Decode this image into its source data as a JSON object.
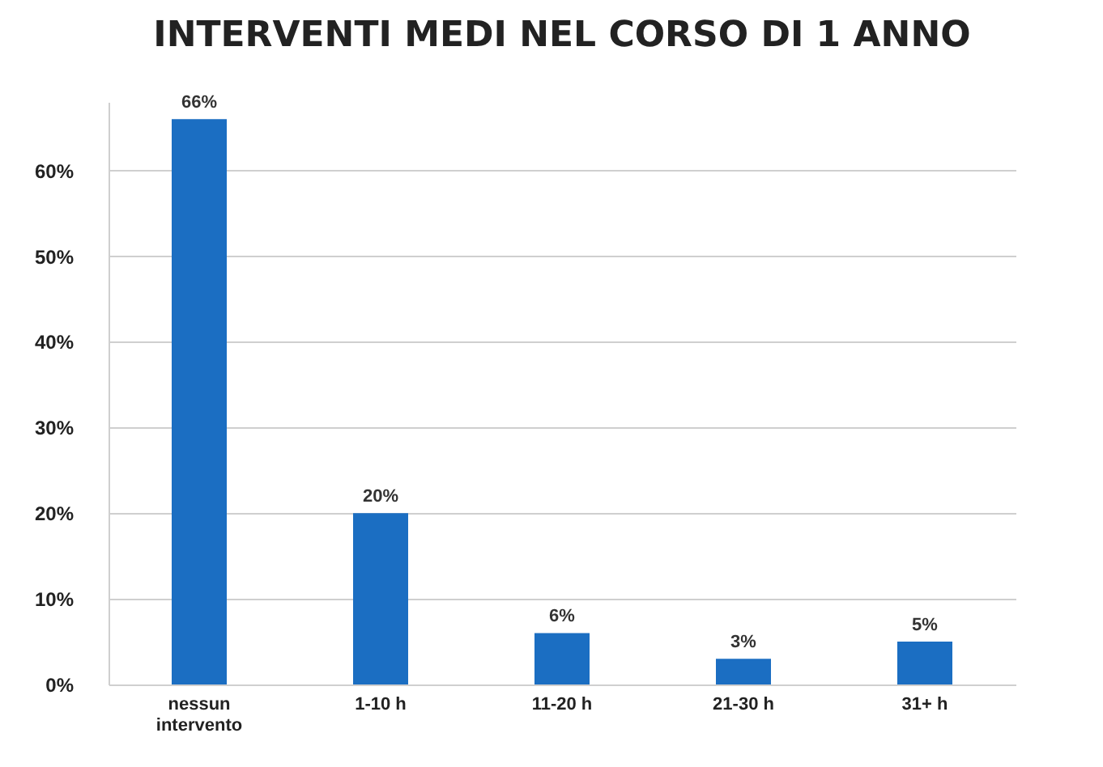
{
  "chart_data": {
    "type": "bar",
    "title": "INTERVENTI MEDI NEL CORSO DI 1 ANNO",
    "categories": [
      "nessun intervento",
      "1-10 h",
      "11-20 h",
      "21-30 h",
      "31+ h"
    ],
    "values": [
      66,
      20,
      6,
      3,
      5
    ],
    "value_labels": [
      "66%",
      "20%",
      "6%",
      "3%",
      "5%"
    ],
    "color": "#1b6ec2",
    "ylim": [
      0,
      68
    ],
    "yticks": [
      {
        "value": 0,
        "label": "0%"
      },
      {
        "value": 10,
        "label": "10%"
      },
      {
        "value": 20,
        "label": "20%"
      },
      {
        "value": 30,
        "label": "30%"
      },
      {
        "value": 40,
        "label": "40%"
      },
      {
        "value": 50,
        "label": "50%"
      },
      {
        "value": 60,
        "label": "60%"
      }
    ],
    "grid": "y"
  }
}
